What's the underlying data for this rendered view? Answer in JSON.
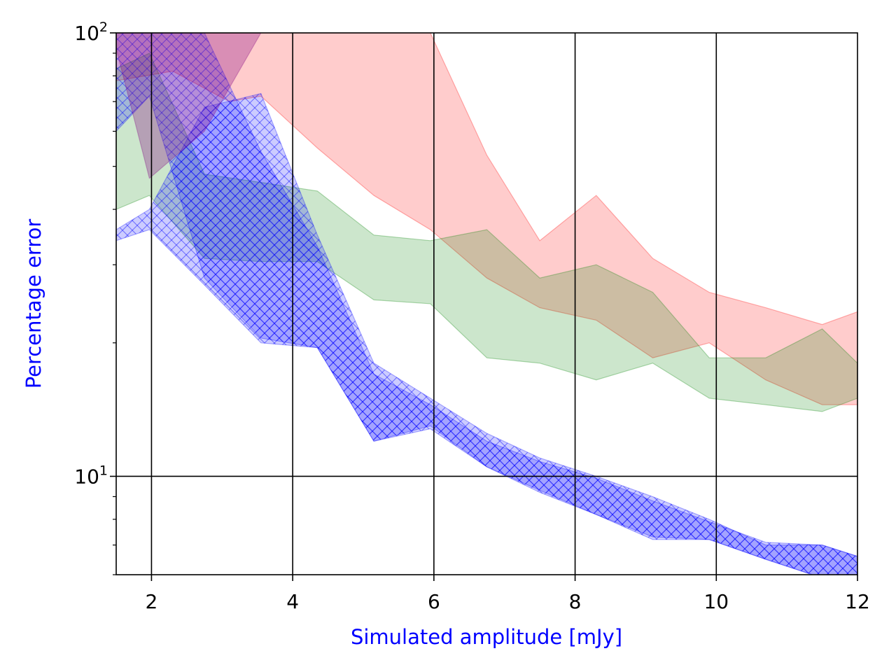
{
  "chart_data": {
    "type": "area",
    "title": "",
    "xlabel": "Simulated amplitude [mJy]",
    "ylabel": "Percentage error",
    "label_color": "#0000ff",
    "xlim": [
      1.5,
      12
    ],
    "ylim": [
      6,
      100
    ],
    "yscale": "log",
    "grid": true,
    "x_ticks": [
      {
        "value": 2,
        "label": "2"
      },
      {
        "value": 4,
        "label": "4"
      },
      {
        "value": 6,
        "label": "6"
      },
      {
        "value": 8,
        "label": "8"
      },
      {
        "value": 10,
        "label": "10"
      },
      {
        "value": 12,
        "label": "12"
      }
    ],
    "y_major_ticks": [
      {
        "value": 10,
        "base": "10",
        "exp": "1"
      },
      {
        "value": 100,
        "base": "10",
        "exp": "2"
      }
    ],
    "y_minor_ticks": [
      6,
      7,
      8,
      9,
      20,
      30,
      40,
      50,
      60,
      70,
      80,
      90
    ],
    "series": [
      {
        "name": "red band",
        "color": "#ff0000",
        "opacity": 0.2,
        "hatch": false,
        "x": [
          1.5,
          2.3,
          3.1,
          3.55,
          4.35,
          5.15,
          5.95,
          6.75,
          7.5,
          8.3,
          9.1,
          9.9,
          10.7,
          11.5,
          12.0
        ],
        "upper": [
          100,
          100,
          100,
          100,
          100,
          100,
          100,
          53,
          34,
          43,
          31,
          26,
          24,
          22,
          23.5
        ],
        "lower": [
          78,
          82,
          70,
          72,
          55,
          43,
          36,
          28,
          24,
          22.5,
          18.5,
          20,
          16.5,
          14.5,
          14.5
        ]
      },
      {
        "name": "green band",
        "color": "#008000",
        "opacity": 0.2,
        "hatch": false,
        "x": [
          1.5,
          1.97,
          2.75,
          3.55,
          4.35,
          5.15,
          5.95,
          6.75,
          7.5,
          8.3,
          9.1,
          9.9,
          10.7,
          11.5,
          12.0
        ],
        "upper": [
          83,
          90,
          48,
          46,
          44,
          35,
          34,
          36,
          28,
          30,
          26,
          18.5,
          18.5,
          21.5,
          18
        ],
        "lower": [
          40,
          43,
          31,
          30.5,
          30.5,
          25,
          24.5,
          18.5,
          18,
          16.5,
          18,
          15,
          14.5,
          14,
          15
        ]
      },
      {
        "name": "blue band (lower)",
        "color": "#0000ff",
        "opacity": 0.2,
        "hatch": true,
        "x": [
          1.5,
          1.97,
          2.75,
          3.55,
          4.35,
          5.15,
          5.95,
          6.75,
          7.5,
          8.3,
          9.1,
          9.9,
          10.7,
          11.5,
          12.0
        ],
        "upper": [
          36,
          40,
          68,
          73,
          35,
          18,
          15,
          12.5,
          11,
          10,
          9,
          8,
          7,
          7,
          6.6
        ],
        "lower": [
          34,
          36,
          27,
          20,
          19.5,
          12,
          12.8,
          10.5,
          9.3,
          8.2,
          7.2,
          7.2,
          6.5,
          5.9,
          5.8
        ]
      },
      {
        "name": "blue band (upper)",
        "color": "#0000ff",
        "opacity": 0.2,
        "hatch": true,
        "x": [
          1.5,
          1.97,
          2.75,
          3.55,
          4.35,
          5.15,
          5.95,
          6.75,
          7.5,
          8.3,
          9.1,
          9.9,
          10.7,
          11.5,
          12.0
        ],
        "upper": [
          100,
          100,
          100,
          54,
          33,
          17,
          14.5,
          12,
          10.8,
          9.9,
          8.8,
          7.9,
          7.1,
          7,
          6.6
        ],
        "lower": [
          60,
          72,
          28,
          20.5,
          19.5,
          12,
          13,
          10.5,
          9.2,
          8.2,
          7.3,
          7.2,
          6.5,
          5.9,
          5.8
        ]
      },
      {
        "name": "purple band",
        "color": "#800080",
        "opacity": 0.3,
        "hatch": false,
        "x": [
          1.5,
          1.97,
          2.75,
          3.55
        ],
        "upper": [
          100,
          100,
          100,
          100
        ],
        "lower": [
          92,
          47,
          60,
          100
        ]
      }
    ]
  }
}
